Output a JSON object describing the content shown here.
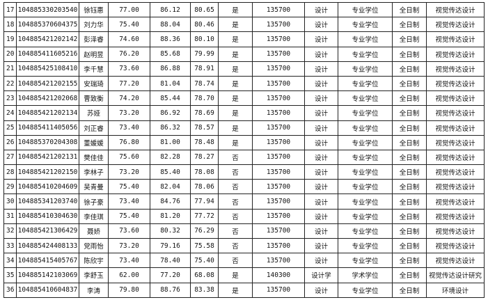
{
  "rows": [
    [
      "17",
      "104885330203540",
      "徐钰惠",
      "77.00",
      "86.12",
      "80.65",
      "是",
      "135700",
      "设计",
      "专业学位",
      "全日制",
      "视觉传达设计"
    ],
    [
      "18",
      "104885370604375",
      "刘力华",
      "75.40",
      "88.04",
      "80.46",
      "是",
      "135700",
      "设计",
      "专业学位",
      "全日制",
      "视觉传达设计"
    ],
    [
      "19",
      "104885421202142",
      "彭泽睿",
      "74.60",
      "88.36",
      "80.10",
      "是",
      "135700",
      "设计",
      "专业学位",
      "全日制",
      "视觉传达设计"
    ],
    [
      "20",
      "104885411605216",
      "赵明昱",
      "76.20",
      "85.68",
      "79.99",
      "是",
      "135700",
      "设计",
      "专业学位",
      "全日制",
      "视觉传达设计"
    ],
    [
      "21",
      "104885425108410",
      "李千慧",
      "73.60",
      "86.88",
      "78.91",
      "是",
      "135700",
      "设计",
      "专业学位",
      "全日制",
      "视觉传达设计"
    ],
    [
      "22",
      "104885421202155",
      "安瑞琦",
      "77.20",
      "81.04",
      "78.74",
      "是",
      "135700",
      "设计",
      "专业学位",
      "全日制",
      "视觉传达设计"
    ],
    [
      "23",
      "104885421202068",
      "曹致衡",
      "74.20",
      "85.44",
      "78.70",
      "是",
      "135700",
      "设计",
      "专业学位",
      "全日制",
      "视觉传达设计"
    ],
    [
      "24",
      "104885421202134",
      "苏娅",
      "73.20",
      "86.92",
      "78.69",
      "是",
      "135700",
      "设计",
      "专业学位",
      "全日制",
      "视觉传达设计"
    ],
    [
      "25",
      "104885411405056",
      "刘正睿",
      "73.40",
      "86.32",
      "78.57",
      "是",
      "135700",
      "设计",
      "专业学位",
      "全日制",
      "视觉传达设计"
    ],
    [
      "26",
      "104885370204308",
      "董媛媛",
      "76.80",
      "81.00",
      "78.48",
      "是",
      "135700",
      "设计",
      "专业学位",
      "全日制",
      "视觉传达设计"
    ],
    [
      "27",
      "104885421202131",
      "樊佳佳",
      "75.60",
      "82.28",
      "78.27",
      "否",
      "135700",
      "设计",
      "专业学位",
      "全日制",
      "视觉传达设计"
    ],
    [
      "28",
      "104885421202150",
      "李林子",
      "73.20",
      "85.40",
      "78.08",
      "否",
      "135700",
      "设计",
      "专业学位",
      "全日制",
      "视觉传达设计"
    ],
    [
      "29",
      "104885410204609",
      "吴青曼",
      "75.40",
      "82.04",
      "78.06",
      "否",
      "135700",
      "设计",
      "专业学位",
      "全日制",
      "视觉传达设计"
    ],
    [
      "30",
      "104885341203740",
      "徐子豪",
      "73.40",
      "84.76",
      "77.94",
      "否",
      "135700",
      "设计",
      "专业学位",
      "全日制",
      "视觉传达设计"
    ],
    [
      "31",
      "104885410304630",
      "李佳琪",
      "75.40",
      "81.20",
      "77.72",
      "否",
      "135700",
      "设计",
      "专业学位",
      "全日制",
      "视觉传达设计"
    ],
    [
      "32",
      "104885421306429",
      "聂娇",
      "73.60",
      "80.32",
      "76.29",
      "否",
      "135700",
      "设计",
      "专业学位",
      "全日制",
      "视觉传达设计"
    ],
    [
      "33",
      "104885424408133",
      "党雨怡",
      "73.20",
      "79.16",
      "75.58",
      "否",
      "135700",
      "设计",
      "专业学位",
      "全日制",
      "视觉传达设计"
    ],
    [
      "34",
      "104885415405767",
      "陈欣宇",
      "73.40",
      "78.40",
      "75.40",
      "否",
      "135700",
      "设计",
      "专业学位",
      "全日制",
      "视觉传达设计"
    ],
    [
      "35",
      "104885142103069",
      "李舒玉",
      "62.00",
      "77.20",
      "68.08",
      "是",
      "140300",
      "设计学",
      "学术学位",
      "全日制",
      "视觉传达设计研究"
    ],
    [
      "36",
      "104885410604837",
      "李涛",
      "79.80",
      "88.76",
      "83.38",
      "是",
      "135700",
      "设计",
      "专业学位",
      "全日制",
      "环境设计"
    ]
  ]
}
